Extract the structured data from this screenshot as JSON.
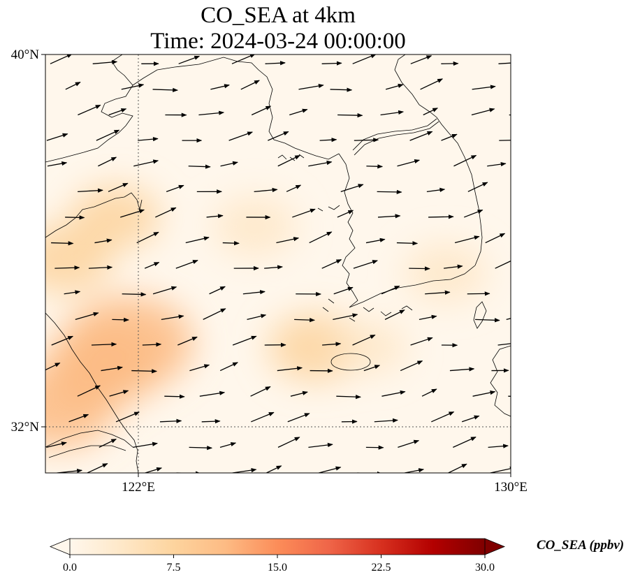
{
  "title": {
    "line1": "CO_SEA at 4km",
    "line2": "Time: 2024-03-24 00:00:00"
  },
  "axes": {
    "lat_ticks": [
      "40°N",
      "32°N"
    ],
    "lon_ticks": [
      "122°E",
      "130°E"
    ],
    "lon_range": [
      120,
      130
    ],
    "lat_range": [
      31,
      40
    ],
    "gridlines": "dotted"
  },
  "colorbar": {
    "label": "CO_SEA (ppbv)",
    "ticks": [
      "0.0",
      "7.5",
      "15.0",
      "22.5",
      "30.0"
    ],
    "range": [
      0,
      30
    ],
    "cmap": "OrRd",
    "colors": [
      "#fff7ec",
      "#fee8c8",
      "#fdd49e",
      "#fdbb84",
      "#fc8d59",
      "#ef6548",
      "#d7301f",
      "#b30000",
      "#7f0000"
    ],
    "extend": "both"
  },
  "chart_data": {
    "type": "heatmap",
    "variable": "CO_SEA",
    "units": "ppbv",
    "height": "4km",
    "time": "2024-03-24 00:00:00",
    "plumes": [
      {
        "lon": 121.8,
        "lat": 33.8,
        "value": 13
      },
      {
        "lon": 121.2,
        "lat": 33.3,
        "value": 11
      },
      {
        "lon": 120.4,
        "lat": 35.6,
        "value": 7
      },
      {
        "lon": 121.5,
        "lat": 36.5,
        "value": 6
      },
      {
        "lon": 124.5,
        "lat": 36.3,
        "value": 5
      },
      {
        "lon": 125.8,
        "lat": 33.7,
        "value": 7
      },
      {
        "lon": 120.3,
        "lat": 32.4,
        "value": 10
      },
      {
        "lon": 128.6,
        "lat": 35.3,
        "value": 5
      },
      {
        "lon": 127.0,
        "lat": 33.7,
        "value": 3
      }
    ],
    "wind_vectors": "westerly, predominantly eastward with slight northward component"
  }
}
